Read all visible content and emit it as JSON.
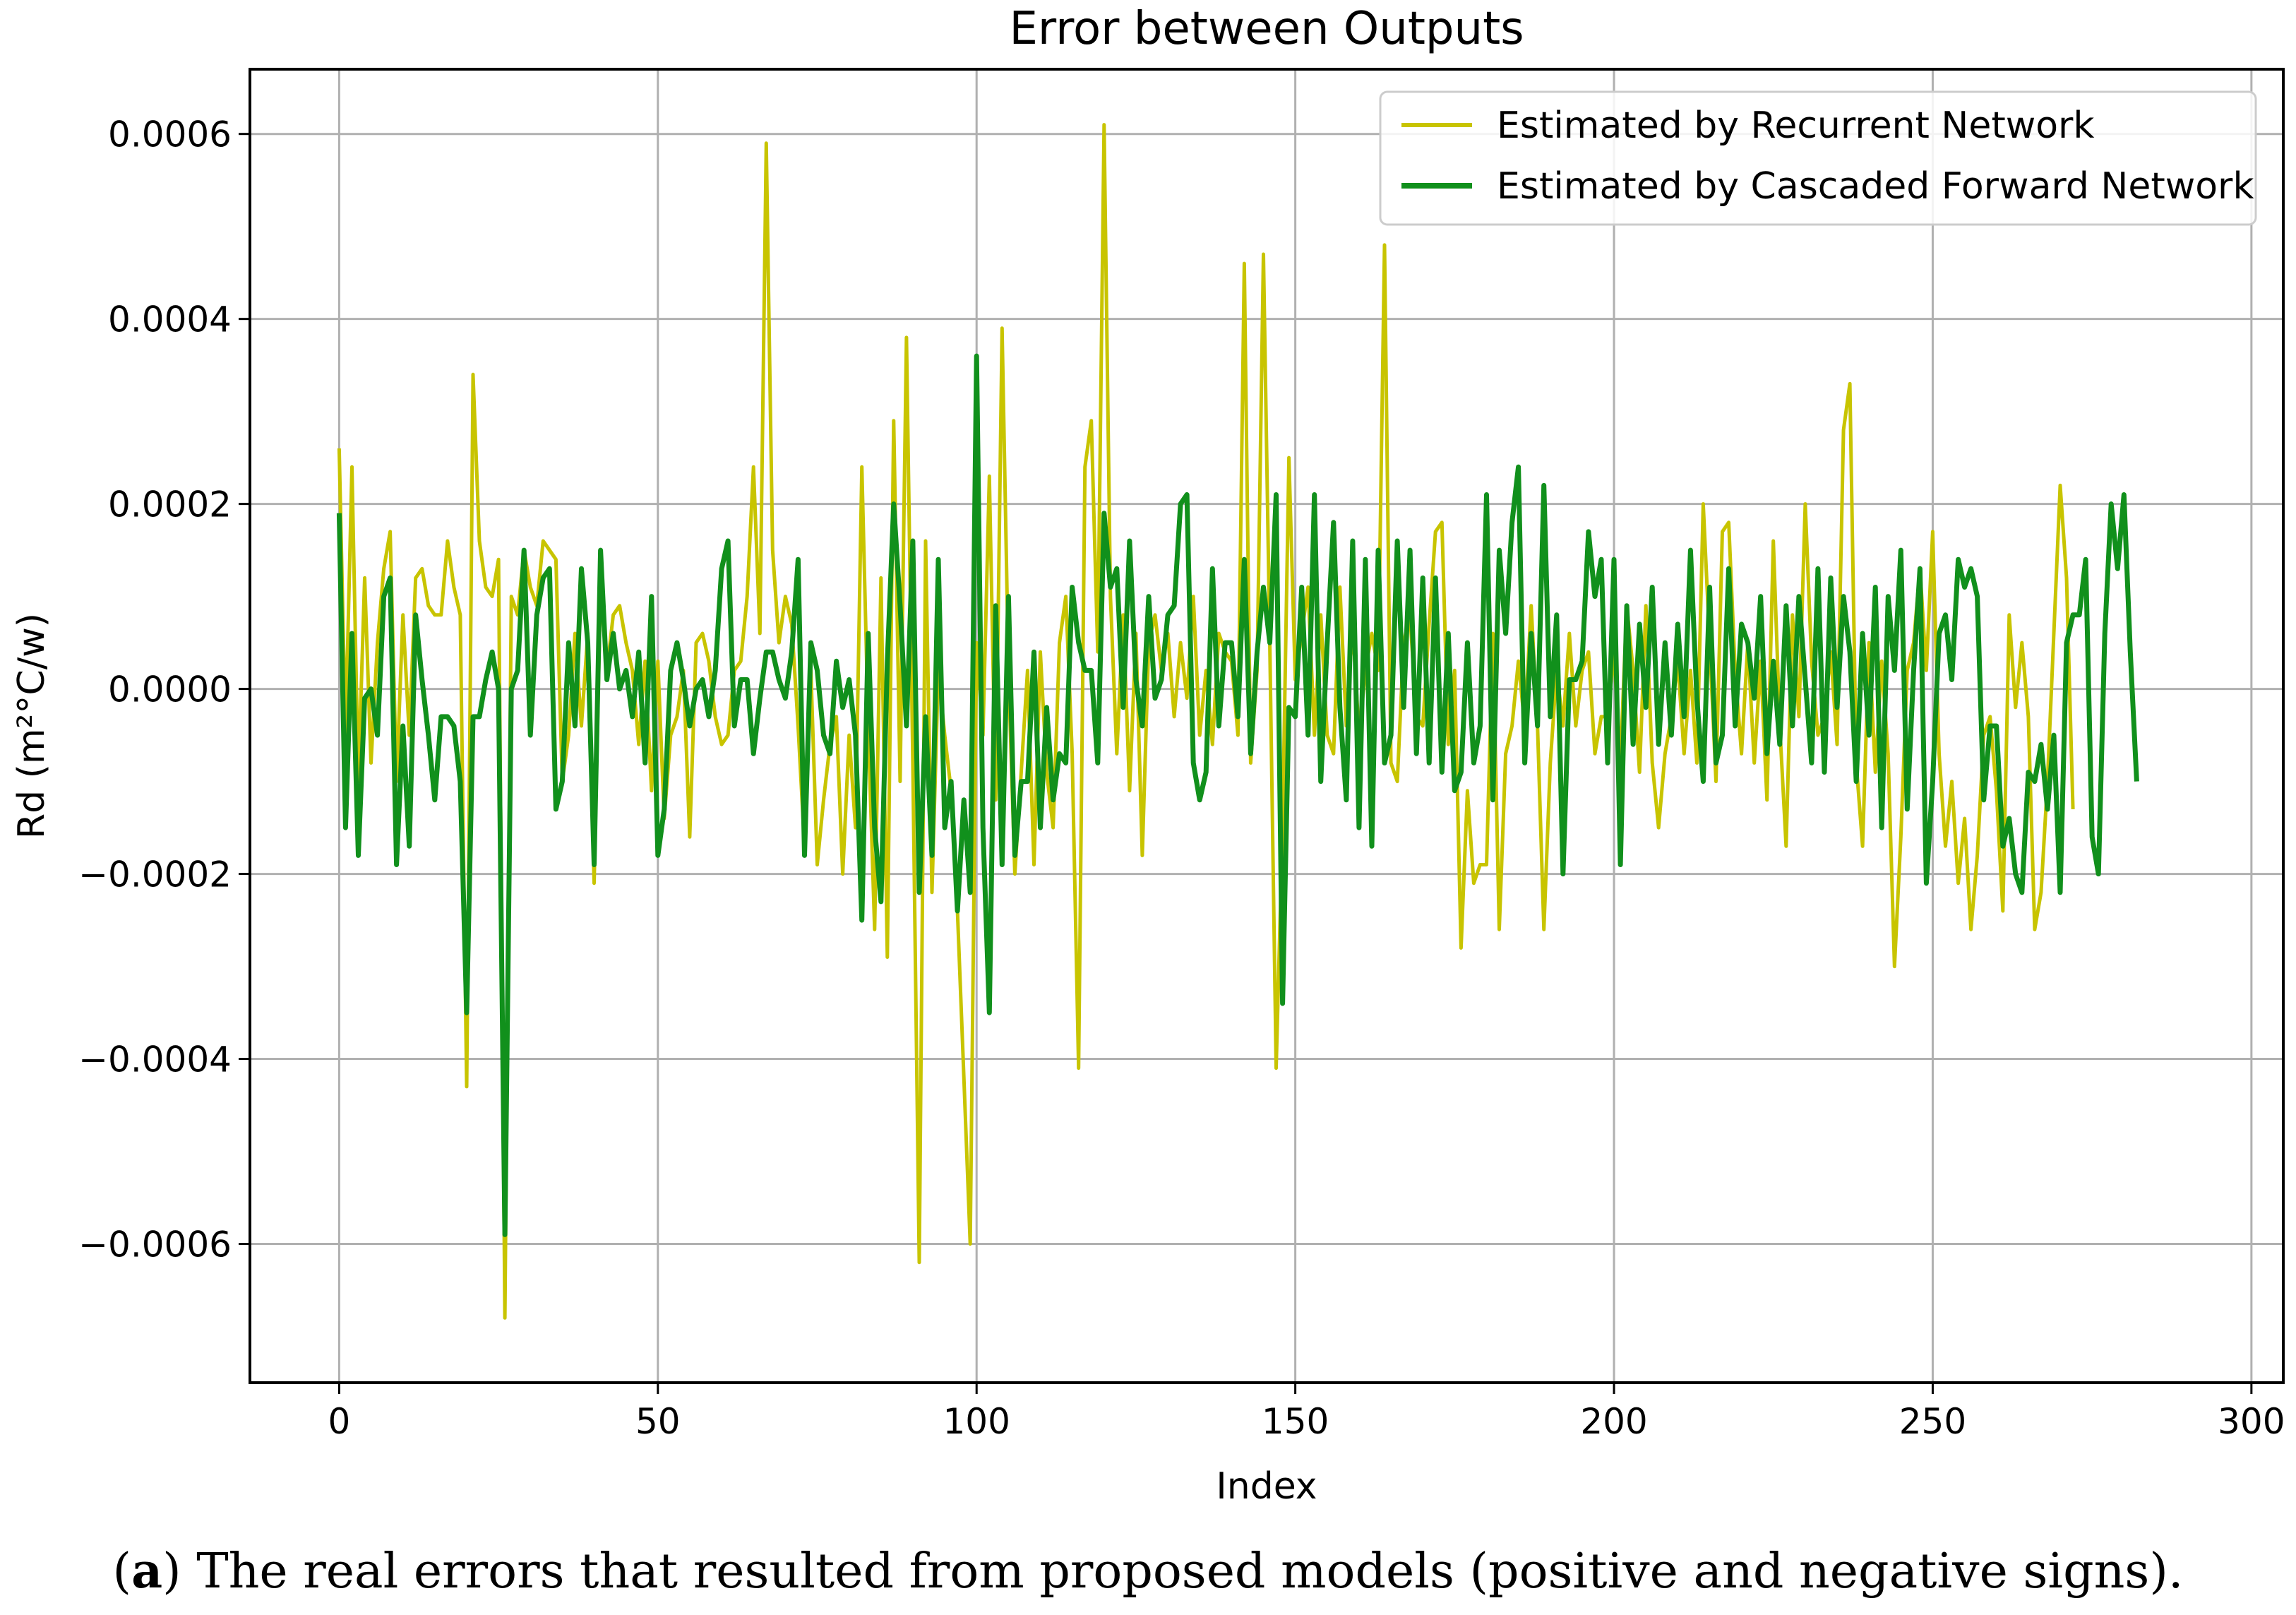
{
  "chart_data": {
    "type": "line",
    "title": "Error between Outputs",
    "xlabel": "Index",
    "ylabel": "Rd (m²°C/w)",
    "xlim": [
      -14,
      305
    ],
    "ylim": [
      -0.00075,
      0.00067
    ],
    "xticks": [
      0,
      50,
      100,
      150,
      200,
      250,
      300
    ],
    "xtick_labels": [
      "0",
      "50",
      "100",
      "150",
      "200",
      "250",
      "300"
    ],
    "yticks": [
      0.0006,
      0.0004,
      0.0002,
      0.0,
      -0.0002,
      -0.0004,
      -0.0006
    ],
    "ytick_labels": [
      "0.0006",
      "0.0004",
      "0.0002",
      "0.0000",
      "−0.0002",
      "−0.0004",
      "−0.0006"
    ],
    "grid": true,
    "legend_position": "top-right",
    "series": [
      {
        "name": "Estimated by Recurrent Network",
        "color": "#c8c400",
        "x_start": 0,
        "x_step": 1,
        "values": [
          0.00026,
          -5e-05,
          0.00024,
          -0.0001,
          0.00012,
          -8e-05,
          5e-05,
          0.00013,
          0.00017,
          -0.0001,
          8e-05,
          -5e-05,
          0.00012,
          0.00013,
          9e-05,
          8e-05,
          8e-05,
          0.00016,
          0.00011,
          8e-05,
          -0.00043,
          0.00034,
          0.00016,
          0.00011,
          0.0001,
          0.00014,
          -0.00068,
          0.0001,
          8e-05,
          0.00015,
          0.00011,
          9e-05,
          0.00016,
          0.00015,
          0.00014,
          -0.0001,
          -5e-05,
          6e-05,
          -4e-05,
          6e-05,
          -0.00021,
          0.00011,
          2e-05,
          8e-05,
          9e-05,
          5e-05,
          2e-05,
          -6e-05,
          3e-05,
          -0.00011,
          3e-05,
          -0.00014,
          -5e-05,
          -3e-05,
          2e-05,
          -0.00016,
          5e-05,
          6e-05,
          3e-05,
          -3e-05,
          -6e-05,
          -5e-05,
          2e-05,
          3e-05,
          0.0001,
          0.00024,
          6e-05,
          0.00059,
          0.00015,
          5e-05,
          0.0001,
          7e-05,
          -4e-05,
          -0.00017,
          2e-05,
          -0.00019,
          -0.00012,
          -6e-05,
          -3e-05,
          -0.0002,
          -5e-05,
          -0.00015,
          0.00024,
          -4e-05,
          -0.00026,
          0.00012,
          -0.00029,
          0.00029,
          -0.0001,
          0.00038,
          -8e-05,
          -0.00062,
          0.00016,
          -0.00022,
          2e-05,
          -5e-05,
          -0.00011,
          -0.00024,
          -0.00042,
          -0.0006,
          5e-05,
          -5e-05,
          0.00023,
          -0.00012,
          0.00039,
          2e-05,
          -0.0002,
          -9e-05,
          2e-05,
          -0.00019,
          4e-05,
          -9e-05,
          -0.00015,
          5e-05,
          0.0001,
          -7e-05,
          -0.00041,
          0.00024,
          0.00029,
          4e-05,
          0.00061,
          0.0001,
          -7e-05,
          8e-05,
          -0.00011,
          6e-05,
          -0.00018,
          5e-05,
          8e-05,
          2e-05,
          6e-05,
          -3e-05,
          5e-05,
          -1e-05,
          0.0001,
          -5e-05,
          2e-05,
          -6e-05,
          6e-05,
          4e-05,
          3e-05,
          -5e-05,
          0.00046,
          -8e-05,
          2e-05,
          0.00047,
          5e-05,
          -0.00041,
          -0.00015,
          0.00025,
          1e-05,
          6e-05,
          0.00011,
          -5e-05,
          8e-05,
          -5e-05,
          -7e-05,
          0.00011,
          -4e-05,
          7e-05,
          -5e-05,
          2e-05,
          6e-05,
          2e-05,
          0.00048,
          -8e-05,
          -0.0001,
          5e-05,
          8e-05,
          -3e-05,
          -4e-05,
          7e-05,
          0.00017,
          0.00018,
          -6e-05,
          2e-05,
          -0.00028,
          -0.00011,
          -0.00021,
          -0.00019,
          -0.00019,
          6e-05,
          -0.00026,
          -7e-05,
          -4e-05,
          3e-05,
          -4e-05,
          9e-05,
          -4e-05,
          -0.00026,
          -8e-05,
          2e-05,
          -4e-05,
          6e-05,
          -4e-05,
          2e-05,
          4e-05,
          -7e-05,
          -3e-05,
          -3e-05,
          4e-05,
          -8e-05,
          9e-05,
          2e-05,
          -9e-05,
          9e-05,
          -8e-05,
          -0.00015,
          -7e-05,
          -3e-05,
          3e-05,
          -7e-05,
          2e-05,
          -8e-05,
          0.0002,
          5e-05,
          -0.0001,
          0.00017,
          0.00018,
          2e-05,
          -7e-05,
          5e-05,
          -8e-05,
          3e-05,
          -0.00012,
          0.00016,
          -4e-05,
          -0.00017,
          8e-05,
          -3e-05,
          0.0002,
          3e-05,
          -5e-05,
          -3e-05,
          4e-05,
          -6e-05,
          0.00028,
          0.00033,
          -8e-05,
          -0.00017,
          5e-05,
          -9e-05,
          3e-05,
          -7e-05,
          -0.0003,
          -0.00016,
          2e-05,
          5e-05,
          0.00013,
          2e-05,
          0.00017,
          -7e-05,
          -0.00017,
          -0.0001,
          -0.00021,
          -0.00014,
          -0.00026,
          -0.00018,
          -5e-05,
          -3e-05,
          -0.00011,
          -0.00024,
          8e-05,
          -2e-05,
          5e-05,
          -3e-05,
          -0.00026,
          -0.00022,
          -0.0001,
          6e-05,
          0.00022,
          0.00012,
          -0.00013
        ]
      },
      {
        "name": "Estimated by Cascaded Forward Network",
        "color": "#11901c",
        "x_start": 0,
        "x_step": 1,
        "values": [
          0.00019,
          -0.00015,
          6e-05,
          -0.00018,
          -1e-05,
          0.0,
          -5e-05,
          0.0001,
          0.00012,
          -0.00019,
          -4e-05,
          -0.00017,
          8e-05,
          1e-05,
          -5e-05,
          -0.00012,
          -3e-05,
          -3e-05,
          -4e-05,
          -0.0001,
          -0.00035,
          -3e-05,
          -3e-05,
          1e-05,
          4e-05,
          0.0,
          -0.00059,
          0.0,
          2e-05,
          0.00015,
          -5e-05,
          8e-05,
          0.00012,
          0.00013,
          -0.00013,
          -0.0001,
          5e-05,
          -4e-05,
          0.00013,
          5e-05,
          -0.00019,
          0.00015,
          1e-05,
          6e-05,
          0.0,
          2e-05,
          -3e-05,
          4e-05,
          -8e-05,
          0.0001,
          -0.00018,
          -0.00013,
          2e-05,
          5e-05,
          1e-05,
          -4e-05,
          0.0,
          1e-05,
          -3e-05,
          2e-05,
          0.00013,
          0.00016,
          -4e-05,
          1e-05,
          1e-05,
          -7e-05,
          -1e-05,
          4e-05,
          4e-05,
          1e-05,
          -1e-05,
          4e-05,
          0.00014,
          -0.00018,
          5e-05,
          2e-05,
          -5e-05,
          -7e-05,
          3e-05,
          -2e-05,
          1e-05,
          -5e-05,
          -0.00025,
          6e-05,
          -0.00015,
          -0.00023,
          3e-05,
          0.0002,
          9e-05,
          -4e-05,
          0.00016,
          -0.00022,
          -3e-05,
          -0.00018,
          0.00014,
          -0.00015,
          -0.0001,
          -0.00024,
          -0.00012,
          -0.00022,
          0.00036,
          -0.00015,
          -0.00035,
          9e-05,
          -0.00019,
          0.0001,
          -0.00018,
          -0.0001,
          -0.0001,
          4e-05,
          -0.00015,
          -2e-05,
          -0.00012,
          -7e-05,
          -8e-05,
          0.00011,
          5e-05,
          2e-05,
          2e-05,
          -8e-05,
          0.00019,
          0.00011,
          0.00013,
          -2e-05,
          0.00016,
          1e-05,
          -4e-05,
          0.0001,
          -1e-05,
          1e-05,
          8e-05,
          9e-05,
          0.0002,
          0.00021,
          -8e-05,
          -0.00012,
          -9e-05,
          0.00013,
          -4e-05,
          5e-05,
          5e-05,
          -3e-05,
          0.00014,
          -7e-05,
          4e-05,
          0.00011,
          5e-05,
          0.00021,
          -0.00034,
          -2e-05,
          -3e-05,
          0.00011,
          -5e-05,
          0.00021,
          -0.0001,
          5e-05,
          0.00018,
          -2e-05,
          -0.00012,
          0.00016,
          -0.00015,
          0.00014,
          -0.00017,
          0.00015,
          -8e-05,
          -5e-05,
          0.00016,
          -2e-05,
          0.00015,
          -7e-05,
          0.00012,
          -8e-05,
          0.00012,
          -9e-05,
          6e-05,
          -0.00011,
          -9e-05,
          5e-05,
          -8e-05,
          -4e-05,
          0.00021,
          -0.00012,
          0.00015,
          6e-05,
          0.00018,
          0.00024,
          -8e-05,
          6e-05,
          -4e-05,
          0.00022,
          -3e-05,
          8e-05,
          -0.0002,
          1e-05,
          1e-05,
          3e-05,
          0.00017,
          0.0001,
          0.00014,
          -8e-05,
          0.00014,
          -0.00019,
          9e-05,
          -6e-05,
          7e-05,
          -2e-05,
          0.00011,
          -6e-05,
          5e-05,
          -5e-05,
          7e-05,
          -3e-05,
          0.00015,
          -1e-05,
          -0.0001,
          0.00011,
          -8e-05,
          -5e-05,
          0.00013,
          -4e-05,
          7e-05,
          5e-05,
          -1e-05,
          0.0001,
          -7e-05,
          3e-05,
          -6e-05,
          9e-05,
          -4e-05,
          0.0001,
          1e-05,
          -8e-05,
          0.00013,
          -9e-05,
          0.00012,
          -2e-05,
          0.0001,
          4e-05,
          -0.0001,
          6e-05,
          -5e-05,
          0.00011,
          -0.00015,
          0.0001,
          2e-05,
          0.00015,
          -0.00013,
          2e-05,
          0.00013,
          -0.00021,
          -0.0001,
          6e-05,
          8e-05,
          1e-05,
          0.00014,
          0.00011,
          0.00013,
          0.0001,
          -0.00012,
          -4e-05,
          -4e-05,
          -0.00017,
          -0.00014,
          -0.0002,
          -0.00022,
          -9e-05,
          -0.0001,
          -6e-05,
          -0.00013,
          -5e-05,
          -0.00022,
          5e-05,
          8e-05,
          8e-05,
          0.00014,
          -0.00016,
          -0.0002,
          6e-05,
          0.0002,
          0.00013,
          0.00021,
          4e-05,
          -0.0001
        ]
      }
    ]
  },
  "caption": {
    "label": "a",
    "text": ") The real errors that resulted from proposed models (positive and negative signs)."
  }
}
